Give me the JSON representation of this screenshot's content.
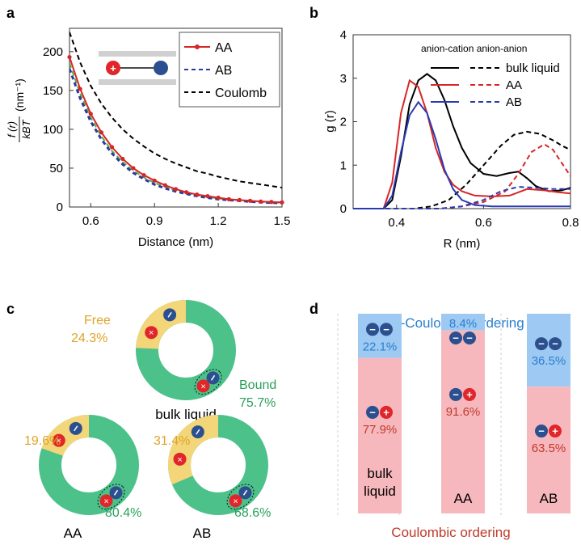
{
  "panel_labels": {
    "a": "a",
    "b": "b",
    "c": "c",
    "d": "d"
  },
  "colors": {
    "red": "#d62728",
    "blue": "#2b3a9c",
    "green_line": "#5ab04a",
    "green_ring": "#4cc18a",
    "gold": "#f2d679",
    "gold_text": "#e0a32a",
    "green_text": "#2aa05c",
    "nc_blue": "#9ec9f2",
    "c_pink": "#f7b8bd",
    "nc_text": "#2a7fd0",
    "c_text": "#c0392b",
    "cation": "#e0262b",
    "anion": "#2c4f8f"
  },
  "chart_data": [
    {
      "panel": "a",
      "type": "line",
      "xlabel": "Distance (nm)",
      "ylabel": "f(r)/kBT (nm⁻¹)",
      "ylabel_parts": {
        "num": "f (r)",
        "den": "kBT",
        "unit": "(nm⁻¹)"
      },
      "xlim": [
        0.5,
        1.5
      ],
      "ylim": [
        0,
        230
      ],
      "xticks": [
        0.6,
        0.9,
        1.2,
        1.5
      ],
      "xticklabels": [
        "0.6",
        "0.9",
        "1.2",
        "1.5"
      ],
      "yticks": [
        0,
        50,
        100,
        150,
        200
      ],
      "yticklabels": [
        "0",
        "50",
        "100",
        "150",
        "200"
      ],
      "legend_position": "top-right",
      "series": [
        {
          "name": "AA",
          "color": "#d62728",
          "style": "solid-dot",
          "x": [
            0.5,
            0.55,
            0.6,
            0.65,
            0.7,
            0.75,
            0.8,
            0.85,
            0.9,
            0.95,
            1.0,
            1.05,
            1.1,
            1.15,
            1.2,
            1.25,
            1.3,
            1.35,
            1.4,
            1.45,
            1.5
          ],
          "y": [
            193,
            152,
            120,
            96,
            77,
            62,
            50,
            41,
            34,
            28,
            23,
            19,
            16,
            14,
            12,
            10,
            9,
            8,
            7,
            6.5,
            6
          ]
        },
        {
          "name": "AB",
          "color": "#2b3a9c",
          "style": "dashed-square",
          "x": [
            0.5,
            0.55,
            0.6,
            0.65,
            0.7,
            0.75,
            0.8,
            0.85,
            0.9,
            0.95,
            1.0,
            1.05,
            1.1,
            1.15,
            1.2,
            1.25,
            1.3,
            1.35,
            1.4,
            1.45,
            1.5
          ],
          "y": [
            178,
            140,
            110,
            87,
            69,
            55,
            44,
            36,
            29,
            24,
            20,
            17,
            14,
            12,
            10,
            9,
            8,
            7,
            6,
            5.5,
            5
          ]
        },
        {
          "name": "",
          "color": "#5ab04a",
          "style": "dashed",
          "x": [
            0.5,
            0.55,
            0.6,
            0.65,
            0.7,
            0.75,
            0.8,
            0.85,
            0.9,
            0.95,
            1.0,
            1.05,
            1.1,
            1.15,
            1.2,
            1.25,
            1.3,
            1.35,
            1.4,
            1.45,
            1.5
          ],
          "y": [
            185,
            146,
            115,
            91,
            72,
            58,
            47,
            38,
            31,
            26,
            21,
            18,
            15,
            13,
            11,
            9.5,
            8.5,
            7.5,
            6.5,
            6,
            5.5
          ]
        },
        {
          "name": "Coulomb",
          "color": "#000000",
          "style": "dashed",
          "x": [
            0.5,
            0.55,
            0.6,
            0.65,
            0.7,
            0.75,
            0.8,
            0.85,
            0.9,
            0.95,
            1.0,
            1.05,
            1.1,
            1.15,
            1.2,
            1.25,
            1.3,
            1.35,
            1.4,
            1.45,
            1.5
          ],
          "y": [
            225,
            186,
            156,
            133,
            115,
            100,
            88,
            78,
            69,
            62,
            56,
            51,
            46,
            43,
            39,
            36,
            33,
            31,
            29,
            27,
            25
          ]
        }
      ]
    },
    {
      "panel": "b",
      "type": "line",
      "xlabel": "R (nm)",
      "ylabel": "g (r)",
      "xlim": [
        0.3,
        0.8
      ],
      "ylim": [
        0,
        4
      ],
      "xticks": [
        0.4,
        0.6,
        0.8
      ],
      "xticklabels": [
        "0.4",
        "0.6",
        "0.8"
      ],
      "yticks": [
        0,
        1,
        2,
        3,
        4
      ],
      "yticklabels": [
        "0",
        "1",
        "2",
        "3",
        "4"
      ],
      "legend_header": "anion-cation anion-anion",
      "legend_position": "top-right",
      "legend_entries": [
        {
          "name": "bulk liquid",
          "color": "#000000"
        },
        {
          "name": "AA",
          "color": "#d62728"
        },
        {
          "name": "AB",
          "color": "#2b3ab0"
        }
      ],
      "series": [
        {
          "name": "bulk liquid",
          "group": "anion-cation",
          "color": "#000000",
          "dash": false,
          "x": [
            0.3,
            0.37,
            0.39,
            0.41,
            0.43,
            0.45,
            0.47,
            0.49,
            0.51,
            0.53,
            0.55,
            0.57,
            0.6,
            0.63,
            0.66,
            0.68,
            0.7,
            0.72,
            0.75,
            0.78,
            0.8
          ],
          "y": [
            0,
            0,
            0.2,
            1.2,
            2.4,
            2.95,
            3.1,
            2.95,
            2.5,
            1.9,
            1.4,
            1.05,
            0.8,
            0.75,
            0.82,
            0.85,
            0.7,
            0.52,
            0.4,
            0.42,
            0.48
          ]
        },
        {
          "name": "bulk liquid",
          "group": "anion-anion",
          "color": "#000000",
          "dash": true,
          "x": [
            0.3,
            0.44,
            0.48,
            0.52,
            0.56,
            0.6,
            0.64,
            0.67,
            0.7,
            0.73,
            0.76,
            0.78,
            0.8
          ],
          "y": [
            0,
            0,
            0.05,
            0.2,
            0.55,
            1.0,
            1.45,
            1.7,
            1.77,
            1.72,
            1.57,
            1.45,
            1.35
          ]
        },
        {
          "name": "AA",
          "group": "anion-cation",
          "color": "#d62728",
          "dash": false,
          "x": [
            0.3,
            0.37,
            0.39,
            0.41,
            0.43,
            0.45,
            0.47,
            0.49,
            0.51,
            0.53,
            0.55,
            0.58,
            0.62,
            0.66,
            0.7,
            0.74,
            0.77,
            0.8
          ],
          "y": [
            0,
            0,
            0.6,
            2.2,
            2.95,
            2.8,
            2.2,
            1.4,
            0.85,
            0.55,
            0.4,
            0.3,
            0.28,
            0.3,
            0.45,
            0.42,
            0.38,
            0.35
          ]
        },
        {
          "name": "AA",
          "group": "anion-anion",
          "color": "#d62728",
          "dash": true,
          "x": [
            0.3,
            0.5,
            0.55,
            0.6,
            0.65,
            0.68,
            0.71,
            0.74,
            0.76,
            0.78,
            0.8
          ],
          "y": [
            0,
            0,
            0.05,
            0.15,
            0.4,
            0.8,
            1.3,
            1.48,
            1.35,
            1.05,
            0.75
          ]
        },
        {
          "name": "AB",
          "group": "anion-cation",
          "color": "#2b3ab0",
          "dash": false,
          "x": [
            0.3,
            0.37,
            0.39,
            0.41,
            0.43,
            0.45,
            0.47,
            0.49,
            0.51,
            0.53,
            0.55,
            0.58,
            0.62,
            0.66,
            0.7,
            0.74,
            0.77,
            0.8
          ],
          "y": [
            0,
            0,
            0.3,
            1.3,
            2.15,
            2.45,
            2.2,
            1.6,
            0.9,
            0.45,
            0.2,
            0.08,
            0.05,
            0.05,
            0.05,
            0.05,
            0.05,
            0.05
          ]
        },
        {
          "name": "AB",
          "group": "anion-anion",
          "color": "#2b3ab0",
          "dash": true,
          "x": [
            0.3,
            0.5,
            0.55,
            0.6,
            0.64,
            0.68,
            0.72,
            0.76,
            0.8
          ],
          "y": [
            0,
            0,
            0.05,
            0.2,
            0.4,
            0.5,
            0.48,
            0.45,
            0.45
          ]
        }
      ]
    },
    {
      "panel": "c",
      "type": "pie",
      "categories": [
        "Free",
        "Bound"
      ],
      "rings": [
        {
          "label": "bulk liquid",
          "free": 24.3,
          "bound": 75.7,
          "free_text": "24.3%",
          "bound_text": "75.7%"
        },
        {
          "label": "AA",
          "free": 19.6,
          "bound": 80.4,
          "free_text": "19.6%",
          "bound_text": "80.4%"
        },
        {
          "label": "AB",
          "free": 31.4,
          "bound": 68.6,
          "free_text": "31.4%",
          "bound_text": "68.6%"
        }
      ],
      "free_label": "Free",
      "bound_label": "Bound"
    },
    {
      "panel": "d",
      "type": "bar",
      "stacked": true,
      "top_title": "non-Coulombic ordering",
      "bottom_title": "Coulombic ordering",
      "categories": [
        "bulk liquid",
        "AA",
        "AB"
      ],
      "category_lines": [
        [
          "bulk",
          "liquid"
        ],
        [
          "AA"
        ],
        [
          "AB"
        ]
      ],
      "series": [
        {
          "name": "non-Coulombic ordering",
          "values": [
            22.1,
            8.4,
            36.5
          ],
          "labels": [
            "22.1%",
            "8.4%",
            "36.5%"
          ]
        },
        {
          "name": "Coulombic ordering",
          "values": [
            77.9,
            91.6,
            63.5
          ],
          "labels": [
            "77.9%",
            "91.6%",
            "63.5%"
          ]
        }
      ]
    }
  ]
}
